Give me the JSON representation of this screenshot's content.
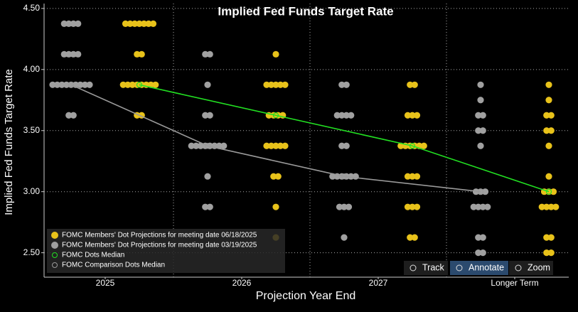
{
  "chart_data": {
    "type": "dot",
    "title": "Implied Fed Funds Target Rate",
    "x_label": "Projection Year End",
    "y_label": "Implied Fed Funds Target Rate",
    "categories": [
      "2025",
      "2026",
      "2027",
      "Longer Term"
    ],
    "ylim": [
      2.3,
      4.54
    ],
    "yticks": [
      {
        "value": 2.5,
        "label": "2.50"
      },
      {
        "value": 3.0,
        "label": "3.00"
      },
      {
        "value": 3.5,
        "label": "3.50"
      },
      {
        "value": 4.0,
        "label": "4.00"
      },
      {
        "value": 4.5,
        "label": "4.50"
      }
    ],
    "grid": true,
    "legend": "bottom-left",
    "series": [
      {
        "name": "FOMC Members' Dot Projections for meeting date 06/18/2025",
        "color": "#e8c21a",
        "dots": [
          [
            {
              "y": 4.375,
              "count": 7
            },
            {
              "y": 4.125,
              "count": 2
            },
            {
              "y": 3.875,
              "count": 8
            },
            {
              "y": 3.625,
              "count": 2
            }
          ],
          [
            {
              "y": 4.125,
              "count": 1
            },
            {
              "y": 3.875,
              "count": 5
            },
            {
              "y": 3.625,
              "count": 4
            },
            {
              "y": 3.375,
              "count": 5
            },
            {
              "y": 3.125,
              "count": 2
            },
            {
              "y": 2.875,
              "count": 1
            },
            {
              "y": 2.625,
              "count": 1
            }
          ],
          [
            {
              "y": 3.875,
              "count": 2
            },
            {
              "y": 3.625,
              "count": 3
            },
            {
              "y": 3.375,
              "count": 6
            },
            {
              "y": 3.125,
              "count": 3
            },
            {
              "y": 2.875,
              "count": 3
            },
            {
              "y": 2.625,
              "count": 2
            }
          ],
          [
            {
              "y": 3.875,
              "count": 1
            },
            {
              "y": 3.75,
              "count": 1
            },
            {
              "y": 3.625,
              "count": 2
            },
            {
              "y": 3.5,
              "count": 2
            },
            {
              "y": 3.375,
              "count": 1
            },
            {
              "y": 3.125,
              "count": 1
            },
            {
              "y": 3.0,
              "count": 3
            },
            {
              "y": 2.875,
              "count": 4
            },
            {
              "y": 2.625,
              "count": 2
            },
            {
              "y": 2.5,
              "count": 2
            }
          ]
        ]
      },
      {
        "name": "FOMC Members' Dot Projections for meeting date 03/19/2025",
        "color": "#a0a0a0",
        "dots": [
          [
            {
              "y": 4.375,
              "count": 4
            },
            {
              "y": 4.125,
              "count": 4
            },
            {
              "y": 3.875,
              "count": 9
            },
            {
              "y": 3.625,
              "count": 2
            }
          ],
          [
            {
              "y": 4.125,
              "count": 2
            },
            {
              "y": 3.875,
              "count": 1
            },
            {
              "y": 3.625,
              "count": 2
            },
            {
              "y": 3.375,
              "count": 8
            },
            {
              "y": 3.125,
              "count": 1
            },
            {
              "y": 2.875,
              "count": 2
            }
          ],
          [
            {
              "y": 3.875,
              "count": 2
            },
            {
              "y": 3.625,
              "count": 4
            },
            {
              "y": 3.375,
              "count": 2
            },
            {
              "y": 3.125,
              "count": 6
            },
            {
              "y": 2.875,
              "count": 3
            },
            {
              "y": 2.625,
              "count": 1
            }
          ],
          [
            {
              "y": 3.875,
              "count": 1
            },
            {
              "y": 3.75,
              "count": 1
            },
            {
              "y": 3.625,
              "count": 2
            },
            {
              "y": 3.5,
              "count": 2
            },
            {
              "y": 3.375,
              "count": 1
            },
            {
              "y": 3.0,
              "count": 3
            },
            {
              "y": 2.875,
              "count": 4
            },
            {
              "y": 2.625,
              "count": 2
            },
            {
              "y": 2.5,
              "count": 2
            }
          ]
        ]
      }
    ],
    "medians": [
      {
        "name": "FOMC Dots Median",
        "color": "#22e022",
        "values": [
          3.875,
          3.625,
          3.375,
          3.0
        ]
      },
      {
        "name": "FOMC Comparison Dots Median",
        "color": "#9a9a9a",
        "values": [
          3.875,
          3.375,
          3.125,
          3.0
        ]
      }
    ],
    "toolbar": [
      "Track",
      "Annotate",
      "Zoom"
    ]
  }
}
